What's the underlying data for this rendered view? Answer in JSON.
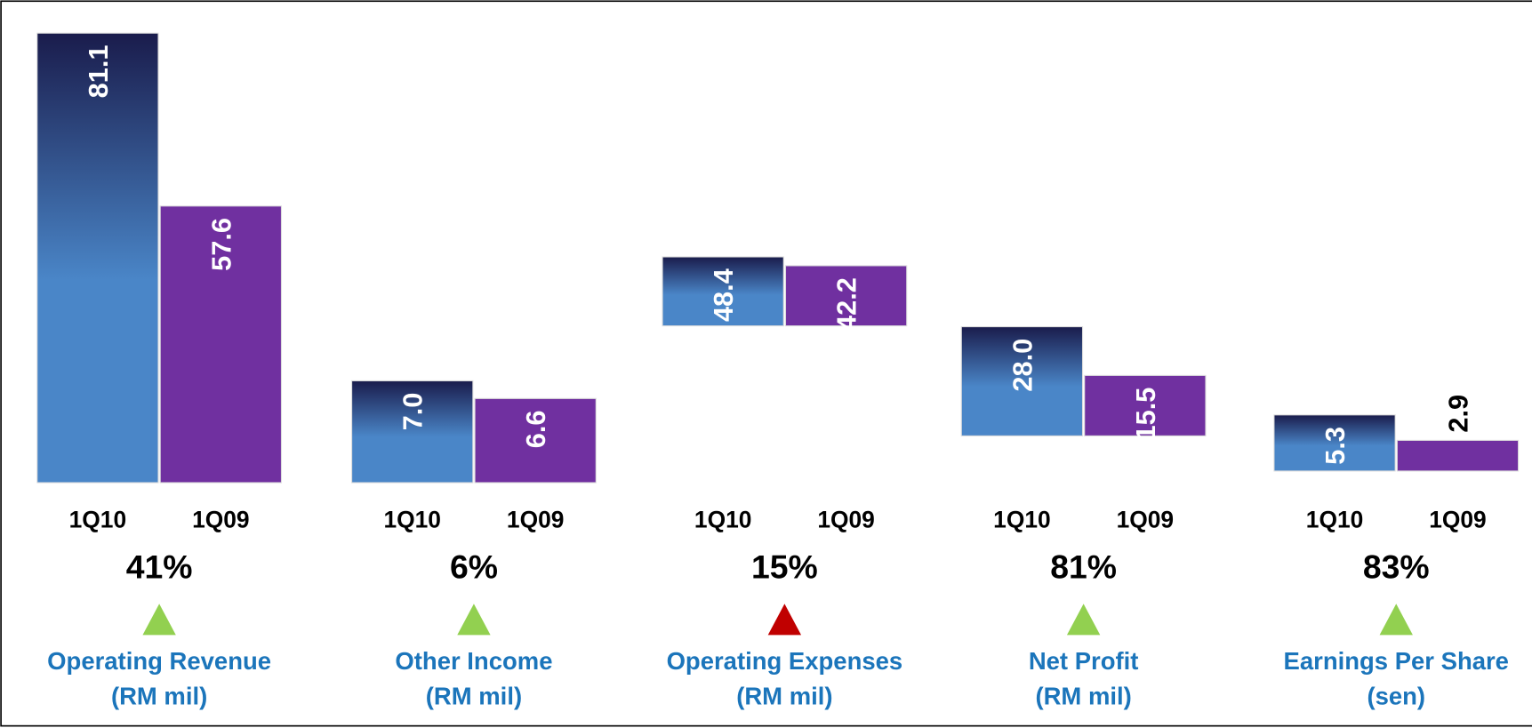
{
  "chart_data": [
    {
      "type": "bar",
      "categories": [
        "1Q10",
        "1Q09"
      ],
      "values": [
        81.1,
        57.6
      ],
      "colors": [
        "#4a86c8",
        "#7030a0"
      ],
      "ylim": [
        20,
        82
      ],
      "change": "41%",
      "trend": "up",
      "trend_color": "#92d050",
      "title": "Operating Revenue",
      "subtitle": "(RM mil)"
    },
    {
      "type": "bar",
      "categories": [
        "1Q10",
        "1Q09"
      ],
      "values": [
        7.0,
        6.6
      ],
      "value_labels": [
        "7.0",
        "6.6"
      ],
      "colors": [
        "#4a86c8",
        "#7030a0"
      ],
      "ylim": [
        4.7,
        15
      ],
      "change": "6%",
      "trend": "up",
      "trend_color": "#92d050",
      "title": "Other Income",
      "subtitle": "(RM mil)"
    },
    {
      "type": "bar",
      "categories": [
        "1Q10",
        "1Q09"
      ],
      "values": [
        48.4,
        42.2
      ],
      "colors": [
        "#4a86c8",
        "#7030a0"
      ],
      "ylim": [
        -110,
        210
      ],
      "change": "15%",
      "trend": "up",
      "trend_color": "#c00000",
      "title": "Operating Expenses",
      "subtitle": "(RM mil)"
    },
    {
      "type": "bar",
      "categories": [
        "1Q10",
        "1Q09"
      ],
      "values": [
        28.0,
        15.5
      ],
      "value_labels": [
        "28.0",
        "15.5"
      ],
      "colors": [
        "#4a86c8",
        "#7030a0"
      ],
      "ylim": [
        -12,
        105
      ],
      "change": "81%",
      "trend": "up",
      "trend_color": "#92d050",
      "title": "Net Profit",
      "subtitle": "(RM mil)"
    },
    {
      "type": "bar",
      "categories": [
        "1Q10",
        "1Q09"
      ],
      "values": [
        5.3,
        2.9
      ],
      "colors": [
        "#4a86c8",
        "#7030a0"
      ],
      "ylim": [
        -1.1,
        42
      ],
      "change": "83%",
      "trend": "up",
      "trend_color": "#92d050",
      "title": "Earnings Per Share",
      "subtitle": "(sen)"
    }
  ]
}
